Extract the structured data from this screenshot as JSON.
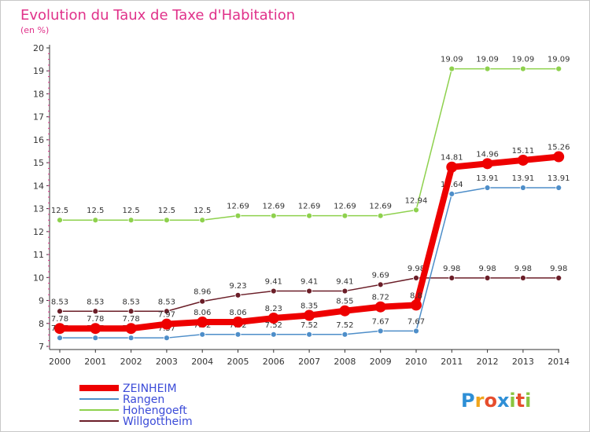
{
  "chart_data": {
    "type": "line",
    "title": "Evolution du Taux de Taxe d'Habitation",
    "subtitle": "(en %)",
    "xlabel": "",
    "ylabel": "",
    "x": [
      "2000",
      "2001",
      "2002",
      "2003",
      "2004",
      "2005",
      "2006",
      "2007",
      "2008",
      "2009",
      "2010",
      "2011",
      "2012",
      "2013",
      "2014"
    ],
    "ylim": [
      7,
      20
    ],
    "yticks": [
      7,
      8,
      9,
      10,
      11,
      12,
      13,
      14,
      15,
      16,
      17,
      18,
      19,
      20
    ],
    "grid": false,
    "legend_position": "bottom-left",
    "series": [
      {
        "name": "ZEINHEIM",
        "color": "#ee0000",
        "values": [
          7.78,
          7.78,
          7.78,
          7.97,
          8.06,
          8.06,
          8.23,
          8.35,
          8.55,
          8.72,
          8.8,
          14.81,
          14.96,
          15.11,
          15.26
        ],
        "labels": [
          "7.78",
          "7.78",
          "7.78",
          "7.97",
          "8.06",
          "8.06",
          "8.23",
          "8.35",
          "8.55",
          "8.72",
          "8.8",
          "14.81",
          "14.96",
          "15.11",
          "15.26"
        ]
      },
      {
        "name": "Rangen",
        "color": "#4e8ec9",
        "values": [
          7.37,
          7.37,
          7.37,
          7.37,
          7.52,
          7.52,
          7.52,
          7.52,
          7.52,
          7.67,
          7.67,
          13.64,
          13.91,
          13.91,
          13.91
        ],
        "labels": [
          "7.37",
          "7.37",
          "7.37",
          "7.37",
          "7.52",
          "7.52",
          "7.52",
          "7.52",
          "7.52",
          "7.67",
          "7.67",
          "13.64",
          "13.91",
          "13.91",
          "13.91"
        ]
      },
      {
        "name": "Hohengoeft",
        "color": "#8ed14d",
        "values": [
          12.5,
          12.5,
          12.5,
          12.5,
          12.5,
          12.69,
          12.69,
          12.69,
          12.69,
          12.69,
          12.94,
          19.09,
          19.09,
          19.09,
          19.09
        ],
        "labels": [
          "12.5",
          "12.5",
          "12.5",
          "12.5",
          "12.5",
          "12.69",
          "12.69",
          "12.69",
          "12.69",
          "12.69",
          "12.94",
          "19.09",
          "19.09",
          "19.09",
          "19.09"
        ]
      },
      {
        "name": "Willgottheim",
        "color": "#6b1e28",
        "values": [
          8.53,
          8.53,
          8.53,
          8.53,
          8.96,
          9.23,
          9.41,
          9.41,
          9.41,
          9.69,
          9.98,
          9.98,
          9.98,
          9.98,
          9.98
        ],
        "labels": [
          "8.53",
          "8.53",
          "8.53",
          "8.53",
          "8.96",
          "9.23",
          "9.41",
          "9.41",
          "9.41",
          "9.69",
          "9.98",
          "9.98",
          "9.98",
          "9.98",
          "9.98"
        ]
      }
    ]
  },
  "legend": {
    "items": [
      {
        "name": "ZEINHEIM",
        "color": "#ee0000",
        "text_color": "#3b4bd8"
      },
      {
        "name": "Rangen",
        "color": "#4e8ec9",
        "text_color": "#3b4bd8"
      },
      {
        "name": "Hohengoeft",
        "color": "#8ed14d",
        "text_color": "#3b4bd8"
      },
      {
        "name": "Willgottheim",
        "color": "#6b1e28",
        "text_color": "#3b4bd8"
      }
    ]
  },
  "logo": {
    "text": "Proxiti",
    "letters": [
      "P",
      "r",
      "o",
      "x",
      "i",
      "t",
      "i"
    ],
    "colors": [
      "#2e8fd6",
      "#f0a51c",
      "#e64d2d",
      "#2e8fd6",
      "#8ac43f",
      "#e64d2d",
      "#8ac43f"
    ]
  }
}
